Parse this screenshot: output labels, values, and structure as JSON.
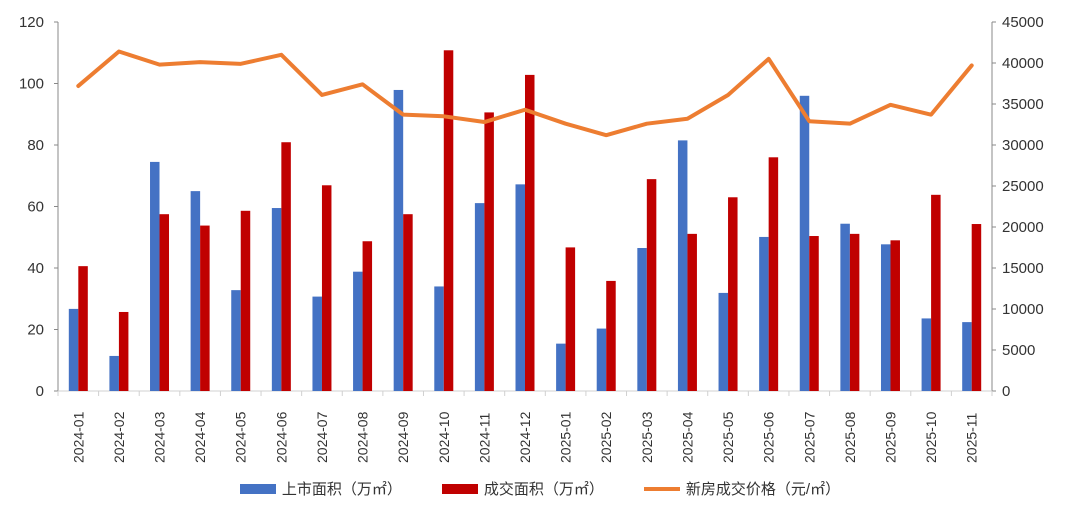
{
  "chart_data": {
    "type": "bar+line",
    "categories": [
      "2024-01",
      "2024-02",
      "2024-03",
      "2024-04",
      "2024-05",
      "2024-06",
      "2024-07",
      "2024-08",
      "2024-09",
      "2024-10",
      "2024-11",
      "2024-12",
      "2025-01",
      "2025-02",
      "2025-03",
      "2025-04",
      "2025-05",
      "2025-06",
      "2025-07",
      "2025-08",
      "2025-09",
      "2025-10",
      "2025-11"
    ],
    "left_axis": {
      "ylim": [
        0,
        120
      ],
      "ticks": [
        "0",
        "20",
        "40",
        "60",
        "80",
        "100",
        "120"
      ]
    },
    "right_axis": {
      "ylim": [
        0,
        45000
      ],
      "ticks": [
        "0",
        "5000",
        "10000",
        "15000",
        "20000",
        "25000",
        "30000",
        "35000",
        "40000",
        "45000"
      ]
    },
    "grid": false,
    "legend": "bottom",
    "series": [
      {
        "name": "上市面积（万㎡）",
        "type": "bar",
        "axis": "left",
        "color": "#4472C4",
        "values": [
          26.7,
          11.4,
          74.5,
          65.0,
          32.8,
          59.5,
          30.7,
          38.8,
          97.9,
          34.0,
          61.1,
          67.2,
          15.4,
          20.3,
          46.5,
          81.5,
          31.9,
          50.1,
          96.0,
          54.4,
          47.7,
          23.6,
          22.4
        ]
      },
      {
        "name": "成交面积（万㎡）",
        "type": "bar",
        "axis": "left",
        "color": "#C00000",
        "values": [
          40.6,
          25.7,
          57.5,
          53.8,
          58.6,
          80.9,
          66.9,
          48.7,
          57.5,
          110.8,
          90.6,
          102.8,
          46.7,
          35.8,
          68.9,
          51.1,
          63.0,
          76.0,
          50.4,
          51.1,
          49.0,
          63.8,
          54.3
        ]
      },
      {
        "name": "新房成交价格（元/㎡）",
        "type": "line",
        "axis": "right",
        "color": "#ED7D31",
        "values": [
          37200,
          41400,
          39800,
          40100,
          39900,
          41000,
          36100,
          37400,
          33700,
          33500,
          32800,
          34300,
          32600,
          31200,
          32600,
          33200,
          36100,
          40500,
          32900,
          32600,
          34900,
          33700,
          39700
        ]
      }
    ]
  }
}
